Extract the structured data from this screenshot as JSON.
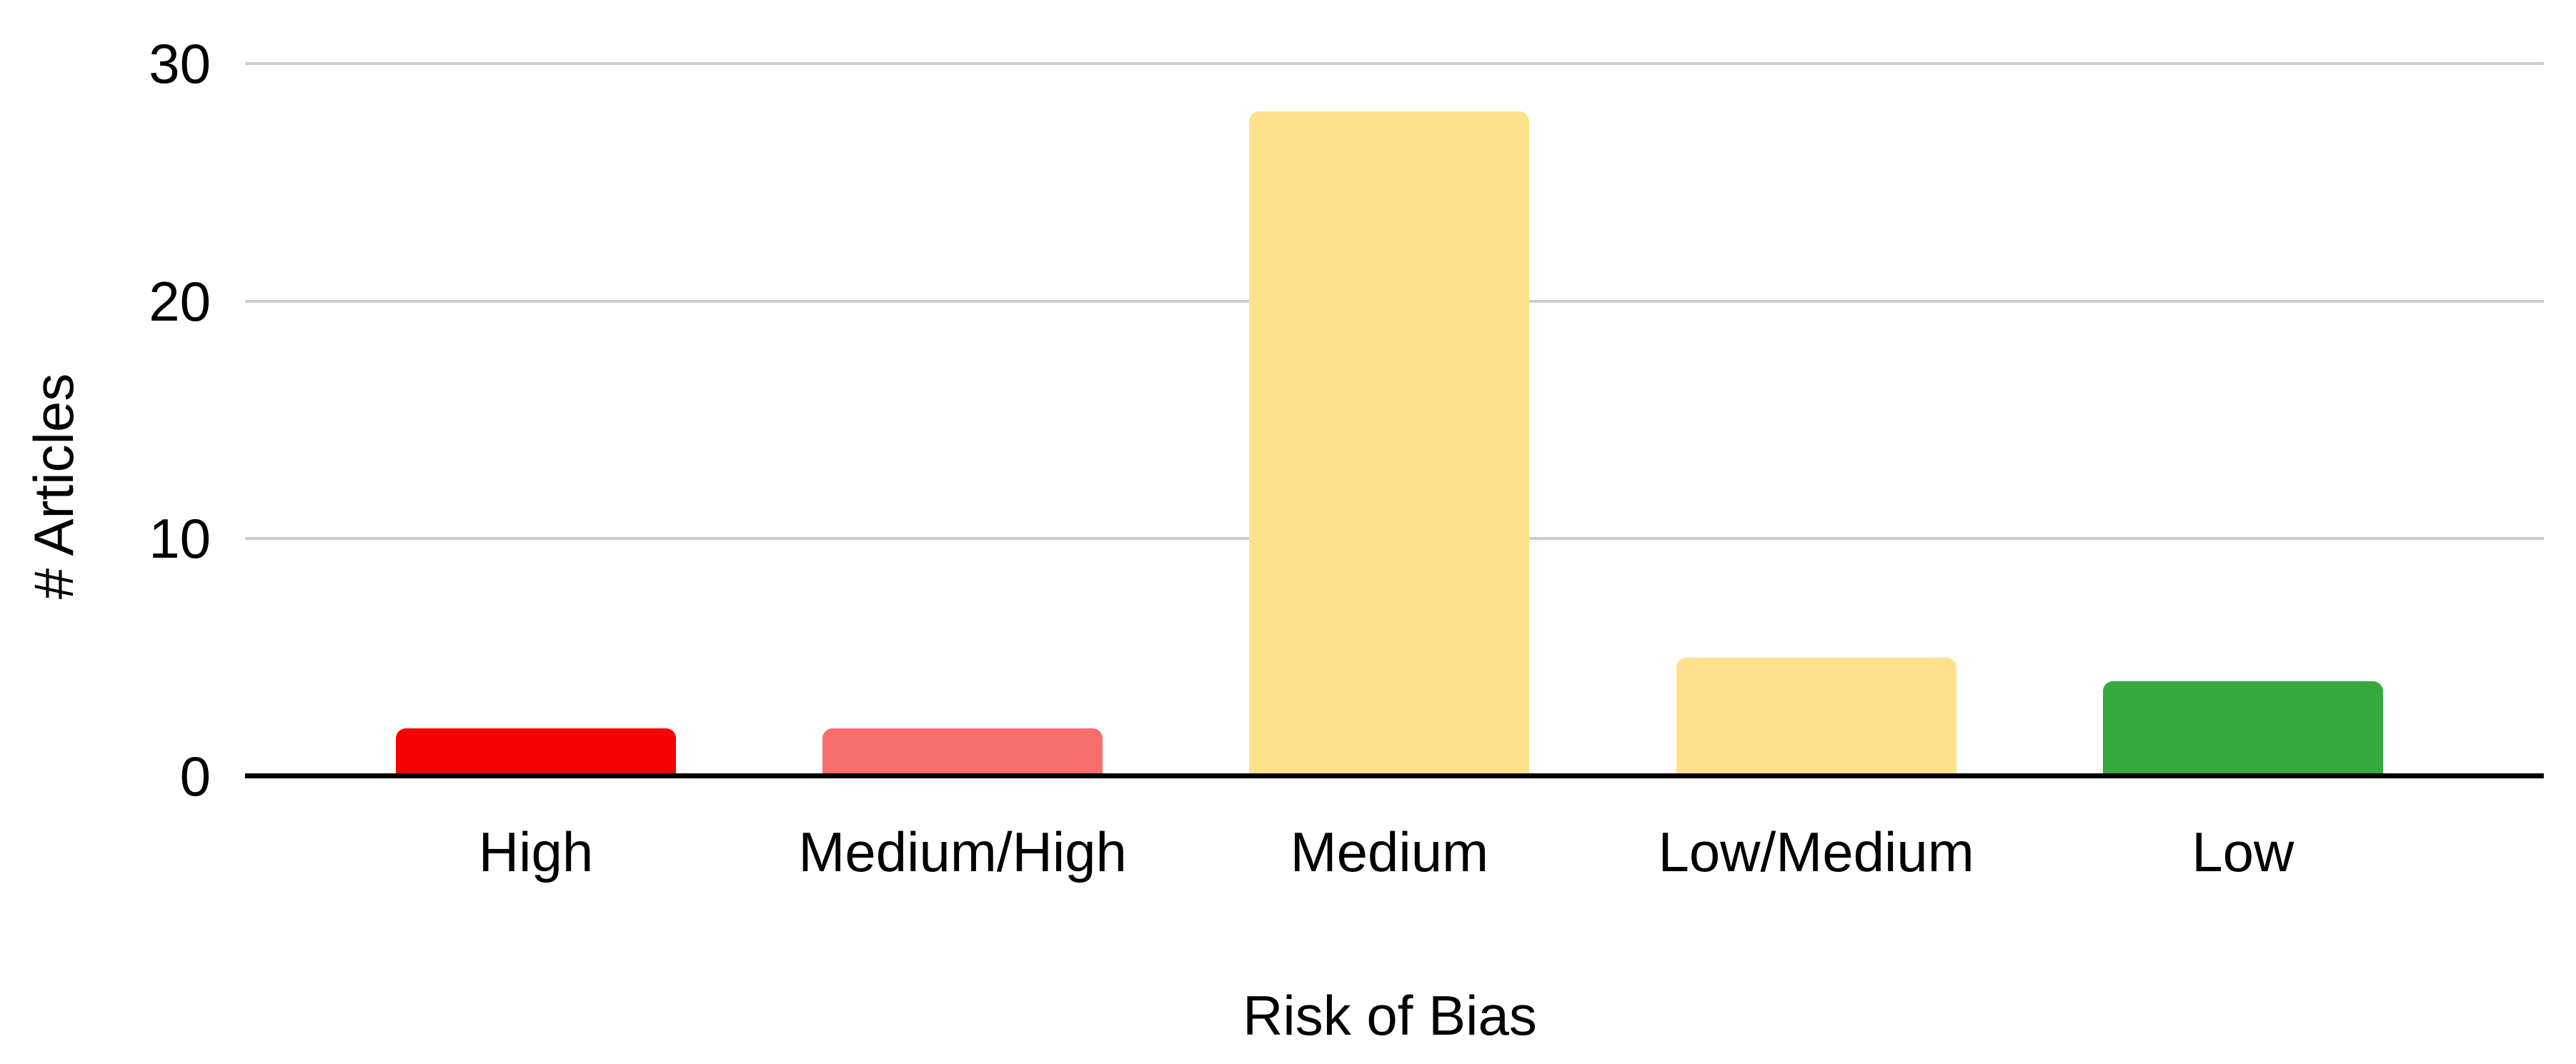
{
  "chart_data": {
    "type": "bar",
    "title": "",
    "categories": [
      "High",
      "Medium/High",
      "Medium",
      "Low/Medium",
      "Low"
    ],
    "values": [
      2,
      2,
      28,
      5,
      4
    ],
    "bar_colors": [
      "#f70000",
      "#f96d6d",
      "#ffe08c",
      "#ffe08c",
      "#36a93f"
    ],
    "xlabel": "Risk of Bias",
    "ylabel": "# Articles",
    "yticks": [
      0,
      10,
      20,
      30
    ],
    "ylim": [
      0,
      30
    ],
    "grid": "horizontal",
    "legend_position": "none",
    "colors": {
      "gridline": "#cccccc",
      "axis_line": "#000000",
      "text": "#000000",
      "background": "#ffffff"
    }
  }
}
